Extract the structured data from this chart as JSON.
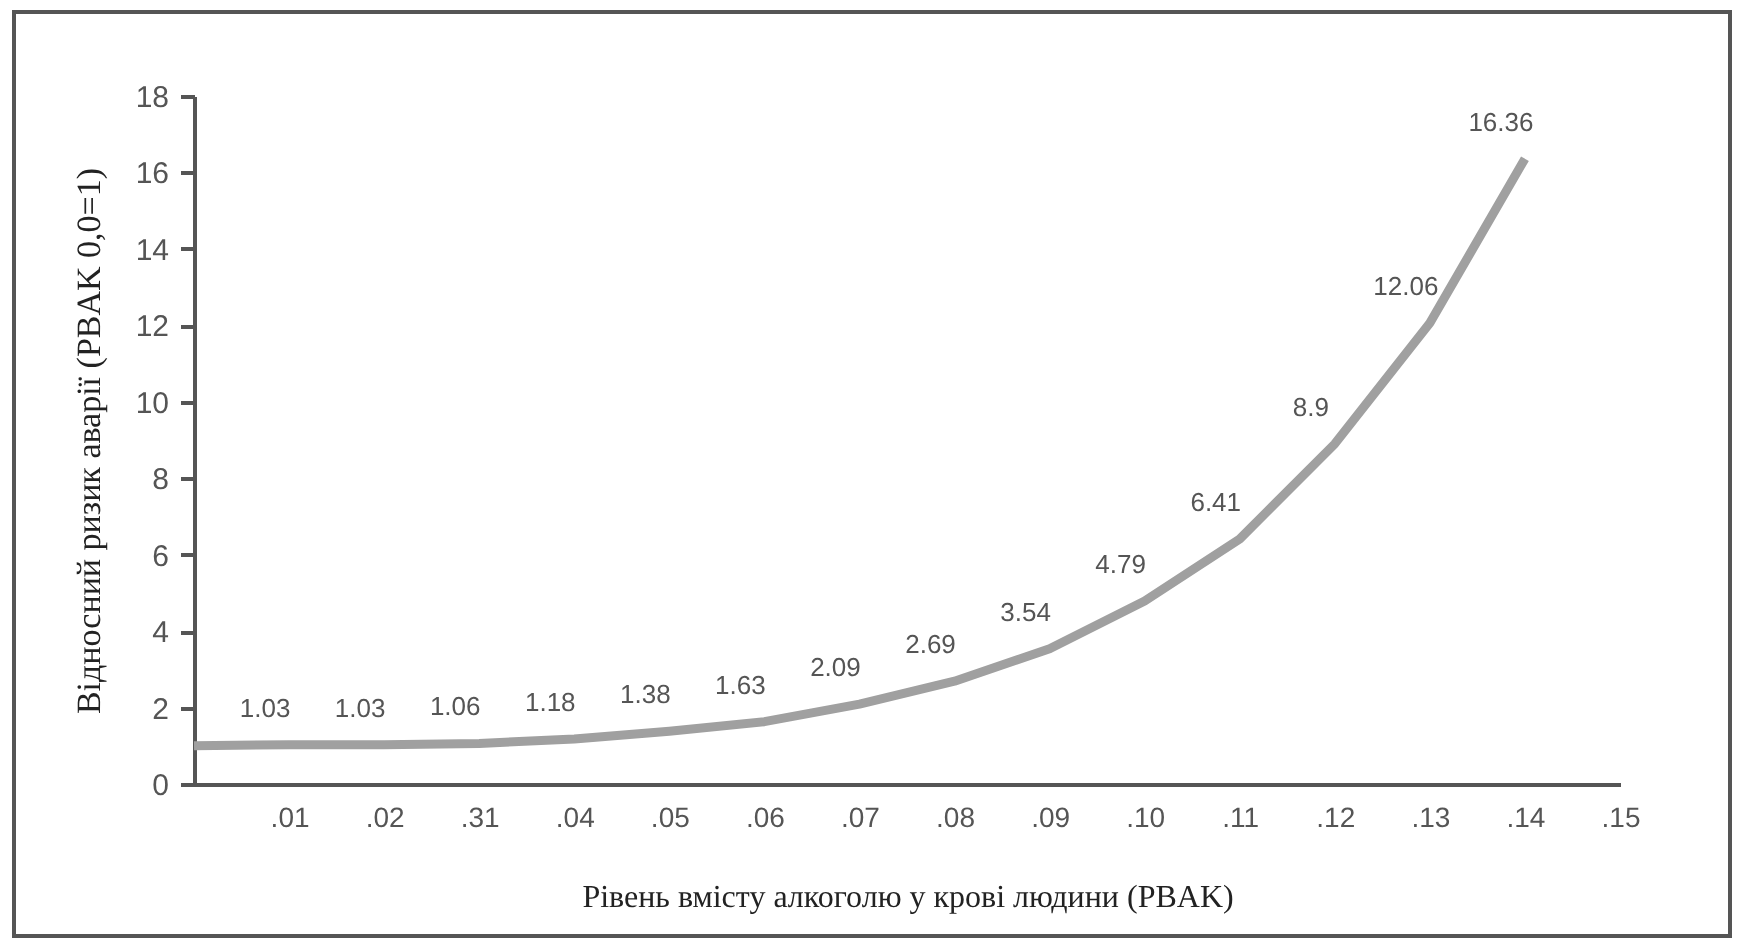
{
  "chart_data": {
    "type": "line",
    "xlabel": "Рівень вмісту алкоголю у крові людини (PBAK)",
    "ylabel": "Відносний ризик аварії (PBAK 0,0=1)",
    "categories": [
      null,
      ".01",
      ".02",
      ".31",
      ".04",
      ".05",
      ".06",
      ".07",
      ".08",
      ".09",
      ".10",
      ".11",
      ".12",
      ".13",
      ".14",
      ".15"
    ],
    "series": [
      {
        "color": "#a0a0a0",
        "values": [
          1,
          1.03,
          1.03,
          1.06,
          1.18,
          1.38,
          1.63,
          2.09,
          2.69,
          3.54,
          4.79,
          6.41,
          8.9,
          12.06,
          16.36,
          null
        ],
        "value_labels": [
          null,
          "1.03",
          "1.03",
          "1.06",
          "1.18",
          "1.38",
          "1.63",
          "2.09",
          "2.69",
          "3.54",
          "4.79",
          "6.41",
          "8.9",
          "12.06",
          "16.36",
          null
        ]
      }
    ],
    "ylim": [
      0,
      18
    ],
    "yticks": [
      0,
      2,
      4,
      6,
      8,
      10,
      12,
      14,
      16,
      18
    ],
    "grid": false,
    "marker": "none",
    "line_style": "solid"
  }
}
